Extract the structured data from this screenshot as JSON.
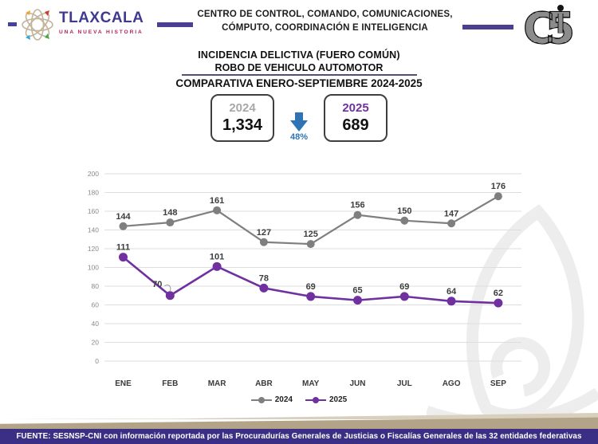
{
  "header": {
    "brand": {
      "wordmark": "TLAXCALA",
      "tagline": "UNA NUEVA HISTORIA"
    },
    "center_line1": "CENTRO DE CONTROL, COMANDO, COMUNICACIONES,",
    "center_line2": "CÓMPUTO, COORDINACIÓN E INTELIGENCIA",
    "right_logo": "C5"
  },
  "title": {
    "line1": "INCIDENCIA DELICTIVA (FUERO COMÚN)",
    "line2": "ROBO DE VEHICULO AUTOMOTOR",
    "line3": "COMPARATIVA ENERO-SEPTIEMBRE 2024-2025"
  },
  "comparison": {
    "left": {
      "year": "2024",
      "value": "1,334"
    },
    "right": {
      "year": "2025",
      "value": "689"
    },
    "change": "48%",
    "arrow_icon": "down-arrow"
  },
  "chart_data": {
    "type": "line",
    "categories": [
      "ENE",
      "FEB",
      "MAR",
      "ABR",
      "MAY",
      "JUN",
      "JUL",
      "AGO",
      "SEP"
    ],
    "series": [
      {
        "name": "2024",
        "color": "#7f7f7f",
        "values": [
          144,
          148,
          161,
          127,
          125,
          156,
          150,
          147,
          176
        ]
      },
      {
        "name": "2025",
        "color": "#7030a0",
        "values": [
          111,
          70,
          101,
          78,
          69,
          65,
          69,
          64,
          62
        ],
        "label_offsets": {
          "1": {
            "dx": -16,
            "dy": -2,
            "leader": true
          }
        }
      }
    ],
    "ylim": [
      0,
      200
    ],
    "ytick_step": 20,
    "grid": true,
    "legend_position": "bottom"
  },
  "footer": {
    "source": "FUENTE: SESNSP-CNI con información reportada por las Procuradurías Generales de Justicias o Fiscalías Generales de las 32 entidades federativas"
  },
  "colors": {
    "brand_purple": "#3f3990",
    "brand_magenta": "#b51e5a",
    "header_bar_purple": "#4b3f92",
    "footer_purple": "#3a2e85",
    "tan_band": "#b3a489",
    "change_blue": "#2e74b5",
    "series_2024_gray": "#7f7f7f",
    "series_2025_purple": "#7030a0",
    "gridline_gray": "#dedede"
  }
}
